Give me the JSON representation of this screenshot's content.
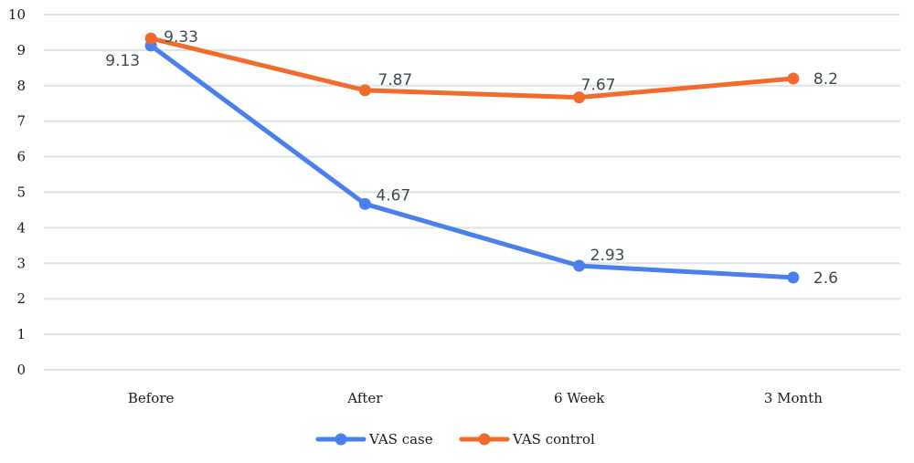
{
  "chart_data": {
    "type": "line",
    "title": "",
    "xlabel": "",
    "ylabel": "",
    "categories": [
      "Before",
      "After",
      "6 Week",
      "3 Month"
    ],
    "ylim": [
      0,
      10
    ],
    "yticks": [
      "0",
      "1",
      "2",
      "3",
      "4",
      "5",
      "6",
      "7",
      "8",
      "9",
      "10"
    ],
    "grid": true,
    "legend_position": "bottom",
    "series": [
      {
        "name": "VAS case",
        "color": "#4a7ff0",
        "values": [
          9.13,
          4.67,
          2.93,
          2.6
        ],
        "labels": [
          "9.13",
          "4.67",
          "2.93",
          "2.6"
        ]
      },
      {
        "name": "VAS control",
        "color": "#f26b2c",
        "values": [
          9.33,
          7.87,
          7.67,
          8.2
        ],
        "labels": [
          "9.33",
          "7.87",
          "7.67",
          "8.2"
        ]
      }
    ]
  }
}
